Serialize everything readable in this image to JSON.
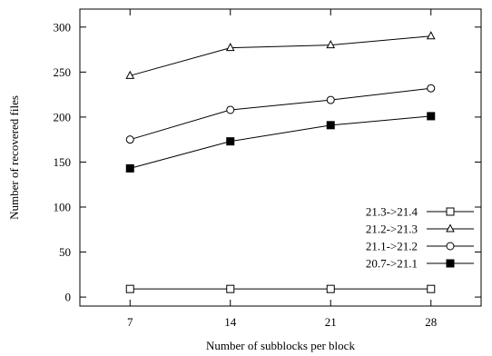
{
  "chart_data": {
    "type": "line",
    "xlabel": "Number of subblocks per block",
    "ylabel": "Number of recovered files",
    "x": [
      7,
      14,
      21,
      28
    ],
    "x_ticks": [
      7,
      14,
      21,
      28
    ],
    "y_ticks": [
      0,
      50,
      100,
      150,
      200,
      250,
      300
    ],
    "xlim": [
      3.5,
      31.5
    ],
    "ylim": [
      -10,
      320
    ],
    "grid": false,
    "legend_position": "bottom-right",
    "series": [
      {
        "name": "21.3->21.4",
        "marker": "open-square",
        "values": [
          9,
          9,
          9,
          9
        ]
      },
      {
        "name": "21.2->21.3",
        "marker": "open-triangle",
        "values": [
          246,
          277,
          280,
          290
        ]
      },
      {
        "name": "21.1->21.2",
        "marker": "open-circle",
        "values": [
          175,
          208,
          219,
          232
        ]
      },
      {
        "name": "20.7->21.1",
        "marker": "filled-square",
        "values": [
          143,
          173,
          191,
          201
        ]
      }
    ]
  }
}
